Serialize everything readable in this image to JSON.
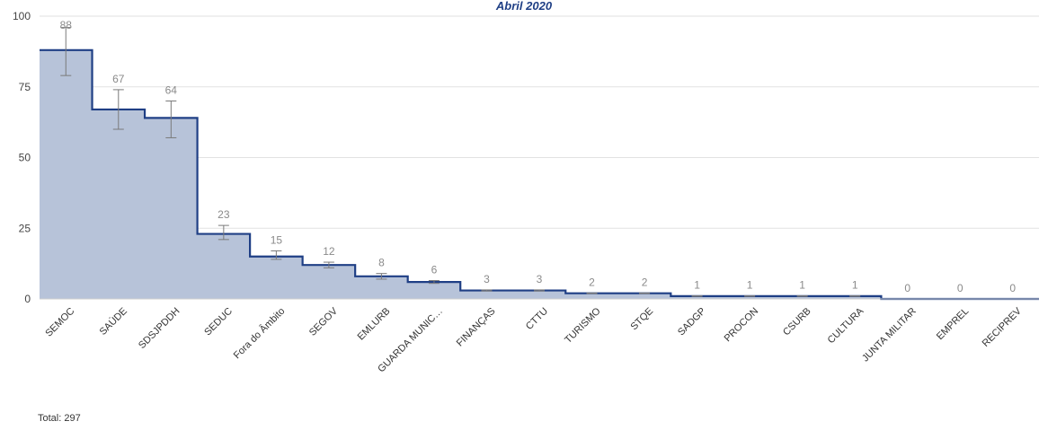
{
  "chart_data": {
    "type": "area",
    "title": "Abril 2020",
    "categories": [
      "SEMOC",
      "SAÚDE",
      "SDSJPDDH",
      "SEDUC",
      "Fora do Âmbito",
      "SEGOV",
      "EMLURB",
      "GUARDA MUNIC…",
      "FINANÇAS",
      "CTTU",
      "TURISMO",
      "STQE",
      "SADGP",
      "PROCON",
      "CSURB",
      "CULTURA",
      "JUNTA MILITAR",
      "EMPREL",
      "RECIPREV"
    ],
    "values": [
      88,
      67,
      64,
      23,
      15,
      12,
      8,
      6,
      3,
      3,
      2,
      2,
      1,
      1,
      1,
      1,
      0,
      0,
      0
    ],
    "error_low": [
      79,
      60,
      57,
      21,
      14,
      11,
      7,
      5.5,
      2.8,
      2.8,
      1.9,
      1.9,
      0.9,
      0.9,
      0.9,
      0.9,
      0,
      0,
      0
    ],
    "error_high": [
      96,
      74,
      70,
      26,
      17,
      13,
      9,
      6.5,
      3.2,
      3.2,
      2.1,
      2.1,
      1.1,
      1.1,
      1.1,
      1.1,
      0,
      0,
      0
    ],
    "ylim": [
      0,
      100
    ],
    "yticks": [
      0,
      25,
      50,
      75,
      100
    ],
    "grid": true,
    "colors": {
      "line": "#1f3f85",
      "fill": "#b7c3d9",
      "errorbar": "#7a7a7a",
      "grid": "#e2e2e2"
    }
  },
  "footer": {
    "total": "Total: 297"
  }
}
